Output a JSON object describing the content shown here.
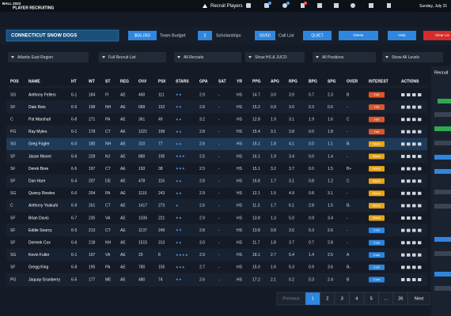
{
  "header": {
    "logo": "BALL 2023",
    "app": "PLAYER RECRUITING",
    "screen": "Recruit Players",
    "badges": [
      "5",
      "4",
      "1"
    ],
    "date": "Sunday, July 31"
  },
  "toolbar": {
    "team": "CONNECTICUT SNOW DOGS",
    "budget": "$56,050",
    "budget_label": "Team Budget",
    "scholarships": "2",
    "scholarships_label": "Scholarships",
    "call_list": "50/50",
    "call_list_label": "Call List",
    "quiet": "QUIET",
    "delete": "Delete",
    "help": "Help",
    "clear": "Clear Lis"
  },
  "filters": [
    "Atlantic East Region",
    "Full Recruit List",
    "All Recruits",
    "Show HS & JUCO",
    "All Positions",
    "Show All Levels"
  ],
  "table": {
    "columns": [
      "POS",
      "NAME",
      "HT",
      "WT",
      "ST",
      "REG",
      "OV#",
      "PS#",
      "STARS",
      "GPA",
      "SAT",
      "YR",
      "PPG",
      "APG",
      "RPG",
      "BPG",
      "SPG",
      "OVER",
      "INTEREST",
      "ACTIONS"
    ],
    "selected_row": 4,
    "rows": [
      [
        "SG",
        "Anthony Fellers",
        "6-1",
        "184",
        "FI",
        "AE",
        "460",
        "111",
        2,
        "2.9",
        "-",
        "HS",
        "14.7",
        "3.0",
        "3.9",
        "0.7",
        "2.3",
        "B",
        "Hot"
      ],
      [
        "SF",
        "Dale Reis",
        "6-5",
        "198",
        "NH",
        "AE",
        "689",
        "152",
        2,
        "2.8",
        "-",
        "HS",
        "15.2",
        "0.9",
        "3.0",
        "0.3",
        "0.6",
        "-",
        "Hot"
      ],
      [
        "C",
        "Pat Marshall",
        "6-8",
        "271",
        "PA",
        "AE",
        "361",
        "49",
        2,
        "3.2",
        "-",
        "HS",
        "12.8",
        "1.9",
        "3.1",
        "1.9",
        "1.6",
        "C",
        "Hot"
      ],
      [
        "PG",
        "Ray Myles",
        "6-1",
        "178",
        "CT",
        "AE",
        "1221",
        "199",
        2,
        "2.8",
        "-",
        "HS",
        "15.4",
        "3.1",
        "3.8",
        "0.0",
        "1.8",
        "-",
        "Hot"
      ],
      [
        "SG",
        "Greg Fogler",
        "6-0",
        "180",
        "NH",
        "AE",
        "310",
        "77",
        2,
        "2.6",
        "-",
        "HS",
        "15.1",
        "1.8",
        "4.1",
        "0.0",
        "1.1",
        "B-",
        "Warm"
      ],
      [
        "SF",
        "Jason Moore",
        "6-6",
        "228",
        "NJ",
        "AE",
        "880",
        "195",
        3,
        "2.5",
        "-",
        "HS",
        "16.1",
        "1.9",
        "3.4",
        "0.0",
        "1.4",
        "-",
        "Warm"
      ],
      [
        "SF",
        "Derek Bree",
        "6-5",
        "197",
        "CT",
        "AE",
        "193",
        "38",
        3,
        "2.5",
        "-",
        "HS",
        "15.1",
        "3.2",
        "3.7",
        "0.0",
        "1.5",
        "B+",
        "Warm"
      ],
      [
        "SF",
        "Dan Hare",
        "6-4",
        "207",
        "DE",
        "AE",
        "478",
        "116",
        2,
        "2.8",
        "-",
        "HS",
        "16.8",
        "1.7",
        "3.1",
        "0.8",
        "1.2",
        "C",
        "Warm"
      ],
      [
        "SG",
        "Quincy Rowles",
        "6-0",
        "204",
        "PA",
        "AE",
        "1110",
        "243",
        2,
        "2.9",
        "-",
        "HS",
        "12.1",
        "1.5",
        "4.9",
        "0.8",
        "3.1",
        "-",
        "Warm"
      ],
      [
        "C",
        "Anthony Yoakuhi",
        "6-9",
        "261",
        "CT",
        "AE",
        "1417",
        "273",
        1,
        "2.6",
        "-",
        "HS",
        "11.3",
        "1.7",
        "6.1",
        "2.8",
        "1.5",
        "B-",
        "Warm"
      ],
      [
        "SF",
        "Brian Davis",
        "6-7",
        "235",
        "VA",
        "AE",
        "1036",
        "221",
        2,
        "2.9",
        "-",
        "HS",
        "13.8",
        "1.3",
        "5.0",
        "0.9",
        "3.4",
        "-",
        "Warm"
      ],
      [
        "SF",
        "Eddie Searcy",
        "6-5",
        "213",
        "CT",
        "AE",
        "1137",
        "249",
        2,
        "2.8",
        "-",
        "HS",
        "13.8",
        "0.8",
        "3.5",
        "0.3",
        "2.6",
        "-",
        "Cool"
      ],
      [
        "SF",
        "Dermek Cox",
        "6-6",
        "218",
        "NH",
        "AE",
        "1515",
        "313",
        2,
        "3.0",
        "-",
        "HS",
        "11.7",
        "1.8",
        "3.7",
        "0.7",
        "2.8",
        "-",
        "Cool"
      ],
      [
        "SG",
        "Kevin Fuller",
        "6-1",
        "197",
        "VA",
        "AE",
        "29",
        "8",
        4,
        "2.9",
        "-",
        "HS",
        "18.1",
        "2.7",
        "5.4",
        "1.4",
        "2.5",
        "A",
        "Cool"
      ],
      [
        "SF",
        "Gregg King",
        "6-8",
        "195",
        "PA",
        "AE",
        "780",
        "155",
        3,
        "2.7",
        "-",
        "HS",
        "15.0",
        "1.6",
        "5.3",
        "0.9",
        "3.6",
        "B-",
        "Cool"
      ],
      [
        "PG",
        "Jaquay Granberry",
        "6-5",
        "177",
        "ME",
        "AE",
        "480",
        "74",
        2,
        "2.6",
        "-",
        "HS",
        "17.2",
        "2.1",
        "0.2",
        "0.3",
        "2.4",
        "B",
        "Cool"
      ]
    ]
  },
  "pagination": {
    "previous": "Previous",
    "pages": [
      1,
      2,
      3,
      4,
      5,
      "...",
      26
    ],
    "current": 1,
    "next": "Next"
  },
  "sidebar": {
    "title": "Recruit"
  }
}
